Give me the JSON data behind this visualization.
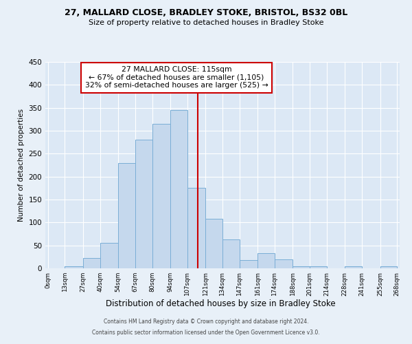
{
  "title1": "27, MALLARD CLOSE, BRADLEY STOKE, BRISTOL, BS32 0BL",
  "title2": "Size of property relative to detached houses in Bradley Stoke",
  "xlabel": "Distribution of detached houses by size in Bradley Stoke",
  "ylabel": "Number of detached properties",
  "bar_left_edges": [
    0,
    13,
    27,
    40,
    54,
    67,
    80,
    94,
    107,
    121,
    134,
    147,
    161,
    174,
    188,
    201,
    214,
    228,
    241,
    255
  ],
  "bar_heights": [
    0,
    5,
    22,
    55,
    230,
    280,
    315,
    345,
    175,
    108,
    63,
    18,
    33,
    19,
    5,
    5,
    0,
    5,
    0,
    5
  ],
  "bar_widths": [
    13,
    14,
    13,
    14,
    13,
    13,
    14,
    13,
    14,
    13,
    13,
    14,
    13,
    14,
    13,
    13,
    14,
    13,
    14,
    13
  ],
  "bar_color": "#c5d8ed",
  "bar_edgecolor": "#7aaed6",
  "marker_x": 115,
  "marker_line_color": "#cc0000",
  "annotation_title": "27 MALLARD CLOSE: 115sqm",
  "annotation_line1": "← 67% of detached houses are smaller (1,105)",
  "annotation_line2": "32% of semi-detached houses are larger (525) →",
  "annotation_box_edgecolor": "#cc0000",
  "annotation_box_facecolor": "#ffffff",
  "xtick_labels": [
    "0sqm",
    "13sqm",
    "27sqm",
    "40sqm",
    "54sqm",
    "67sqm",
    "80sqm",
    "94sqm",
    "107sqm",
    "121sqm",
    "134sqm",
    "147sqm",
    "161sqm",
    "174sqm",
    "188sqm",
    "201sqm",
    "214sqm",
    "228sqm",
    "241sqm",
    "255sqm",
    "268sqm"
  ],
  "xtick_positions": [
    0,
    13,
    27,
    40,
    54,
    67,
    80,
    94,
    107,
    121,
    134,
    147,
    161,
    174,
    188,
    201,
    214,
    228,
    241,
    255,
    268
  ],
  "ylim": [
    0,
    450
  ],
  "xlim": [
    -2,
    270
  ],
  "ytick_values": [
    0,
    50,
    100,
    150,
    200,
    250,
    300,
    350,
    400,
    450
  ],
  "footer_line1": "Contains HM Land Registry data © Crown copyright and database right 2024.",
  "footer_line2": "Contains public sector information licensed under the Open Government Licence v3.0.",
  "background_color": "#e8f0f8",
  "plot_background_color": "#dce8f5"
}
